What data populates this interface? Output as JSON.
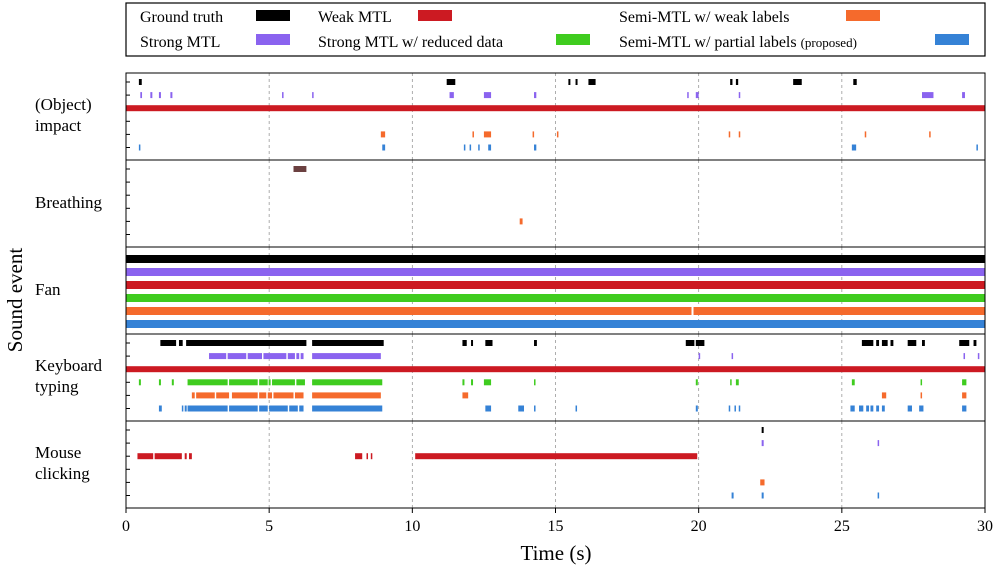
{
  "chart_data": {
    "type": "timeline",
    "xlabel": "Time (s)",
    "ylabel": "Sound event",
    "xlim": [
      0,
      30
    ],
    "xticks": [
      "0",
      "5",
      "10",
      "15",
      "20",
      "25",
      "30"
    ],
    "grid": "vertical dashed every 5 s",
    "legend_position": "top",
    "legend": [
      {
        "key": "gt",
        "label": "Ground truth",
        "color": "#000000"
      },
      {
        "key": "weak",
        "label": "Weak MTL",
        "color": "#cc1a22"
      },
      {
        "key": "semiweak",
        "label": "Semi-MTL w/ weak labels",
        "color": "#f56a2c"
      },
      {
        "key": "strong",
        "label": "Strong MTL",
        "color": "#8a63ef"
      },
      {
        "key": "strongred",
        "label": "Strong MTL w/ reduced data",
        "color": "#3fcc1f"
      },
      {
        "key": "semipartial",
        "label": "Semi-MTL w/ partial labels",
        "suffix": "(proposed)",
        "color": "#3582d6"
      }
    ],
    "categories": [
      {
        "label": [
          "(Object)",
          "impact"
        ],
        "rows": [
          {
            "key": "gt",
            "segments": [
              [
                0.45,
                0.55
              ],
              [
                11.2,
                11.5
              ],
              [
                15.45,
                15.52
              ],
              [
                15.7,
                15.77
              ],
              [
                16.15,
                16.4
              ],
              [
                21.1,
                21.18
              ],
              [
                21.3,
                21.38
              ],
              [
                23.3,
                23.6
              ],
              [
                25.4,
                25.52
              ]
            ]
          },
          {
            "key": "strong",
            "segments": [
              [
                0.5,
                0.56
              ],
              [
                0.85,
                0.92
              ],
              [
                1.15,
                1.22
              ],
              [
                1.55,
                1.62
              ],
              [
                5.45,
                5.5
              ],
              [
                6.5,
                6.55
              ],
              [
                11.3,
                11.45
              ],
              [
                12.5,
                12.75
              ],
              [
                14.25,
                14.33
              ],
              [
                19.6,
                19.65
              ],
              [
                19.9,
                20.0
              ],
              [
                21.4,
                21.45
              ],
              [
                27.8,
                28.2
              ],
              [
                29.2,
                29.3
              ]
            ]
          },
          {
            "key": "weak",
            "segments": [
              [
                0,
                30
              ]
            ]
          },
          {
            "key": "strongred",
            "segments": []
          },
          {
            "key": "semiweak",
            "segments": [
              [
                8.9,
                9.05
              ],
              [
                12.1,
                12.15
              ],
              [
                12.5,
                12.75
              ],
              [
                14.2,
                14.25
              ],
              [
                15.05,
                15.1
              ],
              [
                21.05,
                21.1
              ],
              [
                21.4,
                21.45
              ],
              [
                25.8,
                25.85
              ],
              [
                28.05,
                28.1
              ]
            ]
          },
          {
            "key": "semipartial",
            "segments": [
              [
                0.45,
                0.5
              ],
              [
                8.95,
                9.05
              ],
              [
                11.8,
                11.85
              ],
              [
                12.0,
                12.05
              ],
              [
                12.3,
                12.35
              ],
              [
                12.65,
                12.75
              ],
              [
                14.25,
                14.33
              ],
              [
                25.35,
                25.5
              ],
              [
                29.7,
                29.75
              ]
            ]
          }
        ]
      },
      {
        "label": [
          "Breathing"
        ],
        "rows": [
          {
            "key": "gt",
            "color": "#6b4040",
            "segments": [
              [
                5.85,
                6.3
              ]
            ]
          },
          {
            "key": "strong",
            "segments": []
          },
          {
            "key": "weak",
            "segments": []
          },
          {
            "key": "strongred",
            "segments": []
          },
          {
            "key": "semiweak",
            "segments": [
              [
                13.75,
                13.85
              ]
            ]
          },
          {
            "key": "semipartial",
            "segments": []
          }
        ]
      },
      {
        "label": [
          "Fan"
        ],
        "rows": [
          {
            "key": "gt",
            "segments": [
              [
                0,
                30
              ]
            ]
          },
          {
            "key": "strong",
            "segments": [
              [
                0,
                30
              ]
            ]
          },
          {
            "key": "weak",
            "segments": [
              [
                0,
                30
              ]
            ]
          },
          {
            "key": "strongred",
            "segments": [
              [
                0,
                30
              ]
            ]
          },
          {
            "key": "semiweak",
            "segments": [
              [
                0,
                19.75
              ],
              [
                19.82,
                30
              ]
            ]
          },
          {
            "key": "semipartial",
            "segments": [
              [
                0,
                30
              ]
            ]
          }
        ]
      },
      {
        "label": [
          "Keyboard",
          "typing"
        ],
        "rows": [
          {
            "key": "gt",
            "segments": [
              [
                1.2,
                1.75
              ],
              [
                1.85,
                1.98
              ],
              [
                2.1,
                6.3
              ],
              [
                6.5,
                9.0
              ],
              [
                11.75,
                11.9
              ],
              [
                12.05,
                12.12
              ],
              [
                12.55,
                12.8
              ],
              [
                14.25,
                14.35
              ],
              [
                19.55,
                19.85
              ],
              [
                19.9,
                20.2
              ],
              [
                25.7,
                26.1
              ],
              [
                26.2,
                26.3
              ],
              [
                26.4,
                26.6
              ],
              [
                26.7,
                26.8
              ],
              [
                27.3,
                27.6
              ],
              [
                27.8,
                27.9
              ],
              [
                29.1,
                29.45
              ],
              [
                29.6,
                29.7
              ]
            ]
          },
          {
            "key": "strong",
            "segments": [
              [
                2.9,
                3.5
              ],
              [
                3.55,
                4.2
              ],
              [
                4.25,
                4.75
              ],
              [
                4.8,
                5.6
              ],
              [
                5.65,
                5.9
              ],
              [
                5.95,
                6.05
              ],
              [
                6.1,
                6.2
              ],
              [
                6.5,
                8.9
              ],
              [
                20.0,
                20.05
              ],
              [
                21.15,
                21.2
              ],
              [
                29.25,
                29.3
              ],
              [
                29.75,
                29.8
              ]
            ]
          },
          {
            "key": "weak",
            "segments": [
              [
                0,
                30
              ]
            ]
          },
          {
            "key": "strongred",
            "segments": [
              [
                0.45,
                0.52
              ],
              [
                1.15,
                1.22
              ],
              [
                1.6,
                1.67
              ],
              [
                2.15,
                3.55
              ],
              [
                3.6,
                4.6
              ],
              [
                4.65,
                4.95
              ],
              [
                4.98,
                5.05
              ],
              [
                5.1,
                5.9
              ],
              [
                5.95,
                6.25
              ],
              [
                6.5,
                8.95
              ],
              [
                11.75,
                11.82
              ],
              [
                12.05,
                12.12
              ],
              [
                12.5,
                12.75
              ],
              [
                14.25,
                14.3
              ],
              [
                19.9,
                19.97
              ],
              [
                21.1,
                21.15
              ],
              [
                21.3,
                21.4
              ],
              [
                25.35,
                25.45
              ],
              [
                27.75,
                27.8
              ],
              [
                29.2,
                29.35
              ]
            ]
          },
          {
            "key": "semiweak",
            "segments": [
              [
                2.3,
                2.4
              ],
              [
                2.45,
                3.1
              ],
              [
                3.15,
                3.6
              ],
              [
                3.7,
                4.6
              ],
              [
                4.65,
                4.9
              ],
              [
                4.95,
                5.1
              ],
              [
                5.15,
                5.85
              ],
              [
                5.9,
                6.2
              ],
              [
                6.5,
                8.9
              ],
              [
                11.75,
                11.95
              ],
              [
                26.4,
                26.55
              ],
              [
                27.75,
                27.8
              ],
              [
                29.2,
                29.35
              ]
            ]
          },
          {
            "key": "semipartial",
            "segments": [
              [
                1.15,
                1.25
              ],
              [
                1.95,
                2.0
              ],
              [
                2.05,
                2.12
              ],
              [
                2.15,
                3.55
              ],
              [
                3.6,
                4.6
              ],
              [
                4.65,
                4.95
              ],
              [
                5.0,
                5.65
              ],
              [
                5.7,
                6.0
              ],
              [
                6.05,
                6.2
              ],
              [
                6.5,
                8.95
              ],
              [
                12.55,
                12.75
              ],
              [
                13.7,
                13.9
              ],
              [
                14.25,
                14.3
              ],
              [
                15.7,
                15.75
              ],
              [
                19.9,
                19.97
              ],
              [
                21.05,
                21.1
              ],
              [
                21.25,
                21.3
              ],
              [
                21.4,
                21.45
              ],
              [
                25.3,
                25.45
              ],
              [
                25.6,
                25.75
              ],
              [
                25.85,
                25.95
              ],
              [
                26.0,
                26.1
              ],
              [
                26.2,
                26.3
              ],
              [
                26.4,
                26.5
              ],
              [
                27.3,
                27.45
              ],
              [
                27.7,
                27.85
              ],
              [
                29.2,
                29.35
              ]
            ]
          }
        ]
      },
      {
        "label": [
          "Mouse",
          "clicking"
        ],
        "rows": [
          {
            "key": "gt",
            "segments": [
              [
                22.2,
                22.27
              ]
            ]
          },
          {
            "key": "strong",
            "segments": [
              [
                22.2,
                22.27
              ],
              [
                26.25,
                26.3
              ]
            ]
          },
          {
            "key": "weak",
            "segments": [
              [
                0.4,
                0.95
              ],
              [
                1.0,
                1.95
              ],
              [
                2.05,
                2.12
              ],
              [
                2.2,
                2.3
              ],
              [
                8.0,
                8.25
              ],
              [
                8.4,
                8.45
              ],
              [
                8.55,
                8.6
              ],
              [
                10.1,
                19.95
              ]
            ]
          },
          {
            "key": "strongred",
            "segments": []
          },
          {
            "key": "semiweak",
            "segments": [
              [
                22.15,
                22.3
              ]
            ]
          },
          {
            "key": "semipartial",
            "segments": [
              [
                21.15,
                21.22
              ],
              [
                22.2,
                22.27
              ],
              [
                26.25,
                26.3
              ]
            ]
          }
        ]
      }
    ]
  }
}
